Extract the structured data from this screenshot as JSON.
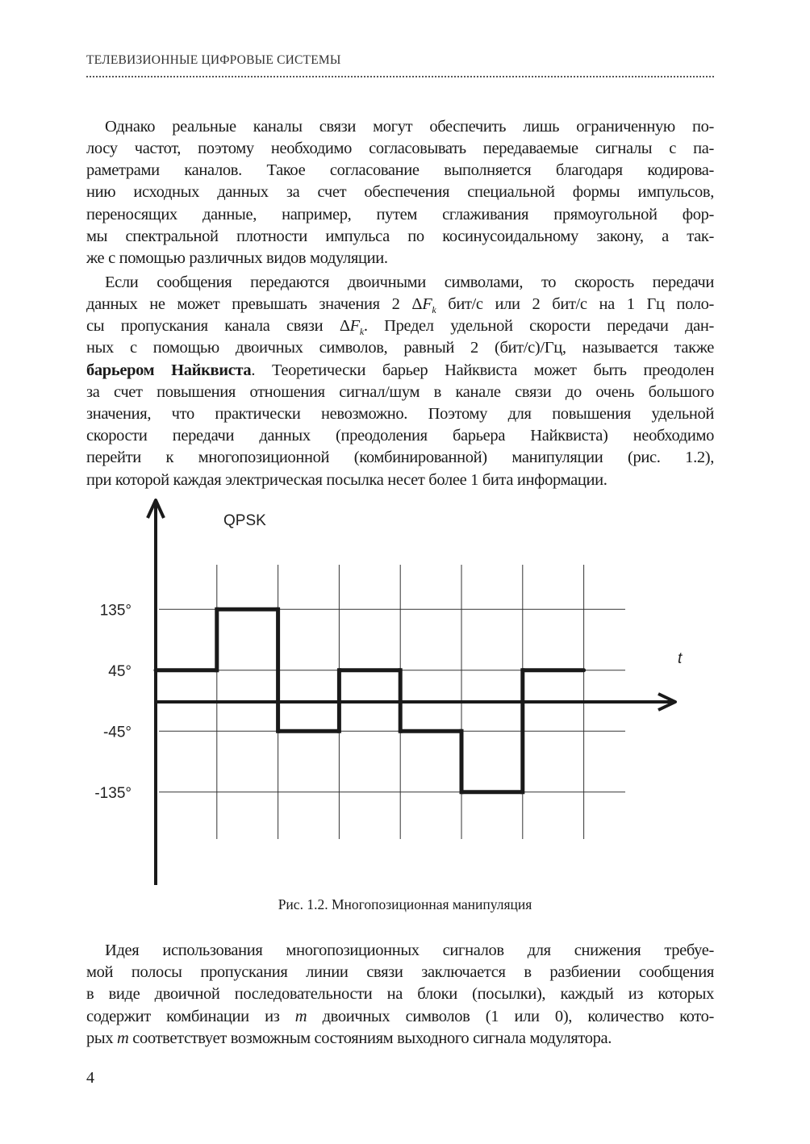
{
  "header": {
    "running_title": "ТЕЛЕВИЗИОННЫЕ ЦИФРОВЫЕ СИСТЕМЫ"
  },
  "paragraphs": [
    {
      "lines": [
        [
          {
            "t": "Однако реальные каналы связи могут обеспечить лишь ограниченную по-"
          }
        ],
        [
          {
            "t": "лосу частот, поэтому необходимо согласовывать передаваемые сигналы с па-"
          }
        ],
        [
          {
            "t": "раметрами каналов. Такое согласование выполняется благодаря кодирова-"
          }
        ],
        [
          {
            "t": "нию исходных данных за счет обеспечения специальной формы импульсов,"
          }
        ],
        [
          {
            "t": "переносящих данные, например, путем сглаживания прямоугольной фор-"
          }
        ],
        [
          {
            "t": "мы спектральной плотности импульса по косинусоидальному закону, а так-"
          }
        ],
        [
          {
            "t": "же с помощью различных видов модуляции."
          }
        ]
      ]
    },
    {
      "lines": [
        [
          {
            "t": "Если сообщения передаются двоичными символами, то скорость передачи"
          }
        ],
        [
          {
            "t": "данных не может превышать значения 2 Δ"
          },
          {
            "t": "F",
            "s": "i"
          },
          {
            "t": "k",
            "s": "sub"
          },
          {
            "t": " бит/с или 2 бит/с на 1 Гц поло-"
          }
        ],
        [
          {
            "t": "сы пропускания канала связи Δ"
          },
          {
            "t": "F",
            "s": "i"
          },
          {
            "t": "k",
            "s": "sub"
          },
          {
            "t": ". Предел удельной скорости передачи дан-"
          }
        ],
        [
          {
            "t": "ных с помощью двоичных символов, равный 2 (бит/с)/Гц, называется также"
          }
        ],
        [
          {
            "t": "барьером Найквиста",
            "s": "b"
          },
          {
            "t": ". Теоретически барьер Найквиста может быть преодолен"
          }
        ],
        [
          {
            "t": "за счет повышения отношения сигнал/шум в канале связи до очень большого"
          }
        ],
        [
          {
            "t": "значения, что практически невозможно. Поэтому для повышения удельной"
          }
        ],
        [
          {
            "t": "скорости передачи данных (преодоления барьера Найквиста) необходимо"
          }
        ],
        [
          {
            "t": "перейти к многопозиционной (комбинированной) манипуляции (рис. 1.2),"
          }
        ],
        [
          {
            "t": "при которой каждая электрическая посылка несет более 1 бита информации."
          }
        ]
      ]
    },
    {
      "lines": [
        [
          {
            "t": "Идея использования многопозиционных сигналов для снижения требуе-"
          }
        ],
        [
          {
            "t": "мой полосы пропускания линии связи заключается в разбиении сообщения"
          }
        ],
        [
          {
            "t": "в виде двоичной последовательности на блоки (посылки), каждый из которых"
          }
        ],
        [
          {
            "t": "содержит комбинации из "
          },
          {
            "t": "m",
            "s": "i"
          },
          {
            "t": " двоичных символов (1 или 0), количество кото-"
          }
        ],
        [
          {
            "t": "рых "
          },
          {
            "t": "m",
            "s": "i"
          },
          {
            "t": " соответствует возможным состояниям выходного сигнала модулятора."
          }
        ]
      ]
    }
  ],
  "figure": {
    "caption": "Рис. 1.2. Многопозиционная манипуляция"
  },
  "chart_data": {
    "type": "line",
    "title": "QPSK",
    "xlabel": "t",
    "ylabel": "",
    "y_ticks": [
      135,
      45,
      -45,
      -135
    ],
    "y_tick_labels": [
      "135°",
      "45°",
      "-45°",
      "-135°"
    ],
    "symbol_intervals": 7,
    "values": [
      45,
      135,
      -45,
      45,
      -45,
      -135,
      45
    ],
    "grid": true,
    "color": "#1a1a1a"
  },
  "page_number": "4"
}
